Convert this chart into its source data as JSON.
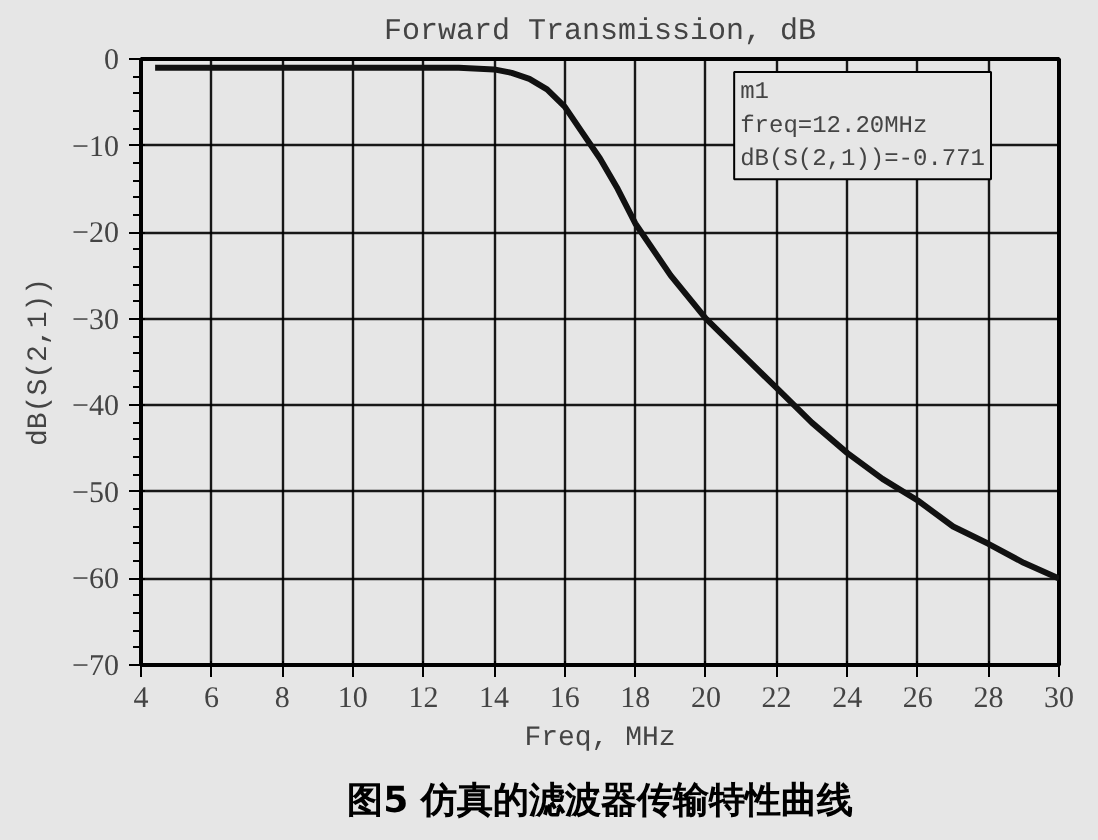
{
  "chart_data": {
    "type": "line",
    "title": "Forward Transmission, dB",
    "xlabel": "Freq, MHz",
    "ylabel": "dB(S(2,1))",
    "x": [
      4.4,
      6,
      8,
      10,
      12,
      13,
      14,
      14.5,
      15,
      15.5,
      16,
      16.5,
      17,
      17.5,
      18,
      19,
      20,
      21,
      22,
      23,
      24,
      25,
      26,
      27,
      28,
      29,
      30
    ],
    "series": [
      {
        "color": "#111111",
        "values": [
          -1,
          -1,
          -1,
          -1,
          -1,
          -1,
          -1.2,
          -1.6,
          -2.3,
          -3.5,
          -5.5,
          -8.5,
          -11.5,
          -15,
          -19,
          -25,
          -30,
          -34,
          -38,
          -42,
          -45.5,
          -48.5,
          -51,
          -54,
          -56,
          -58.2,
          -60
        ]
      }
    ],
    "xlim": [
      4,
      30
    ],
    "xticks": [
      4,
      6,
      8,
      10,
      12,
      14,
      16,
      18,
      20,
      22,
      24,
      26,
      28,
      30
    ],
    "ylim": [
      -70,
      0
    ],
    "yticks": [
      -70,
      -60,
      -50,
      -40,
      -30,
      -20,
      -10,
      0
    ],
    "grid": true,
    "marker": "none",
    "line_style": "solid",
    "annotations": [
      "m1\nfreq=12.20MHz\ndB(S(2,1))=-0.771",
      "图5 仿真的滤波器传输特性曲线"
    ]
  }
}
